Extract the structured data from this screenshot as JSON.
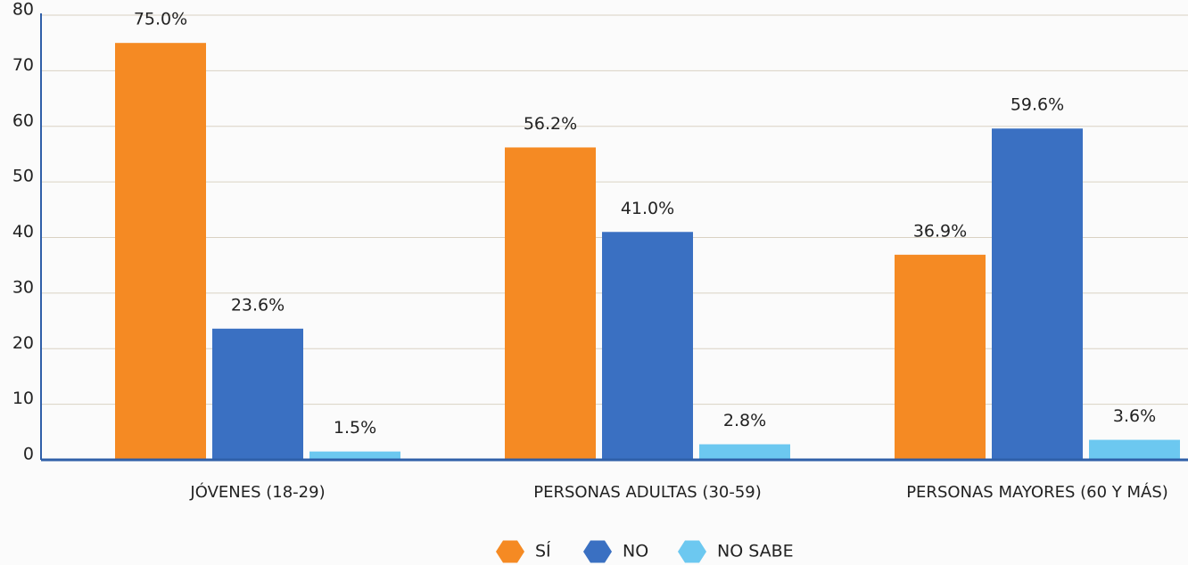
{
  "chart_data": {
    "type": "bar",
    "categories": [
      "JÓVENES (18-29)",
      "PERSONAS ADULTAS (30-59)",
      "PERSONAS MAYORES (60 Y MÁS)"
    ],
    "series": [
      {
        "name": "SÍ",
        "color": "#f58a23",
        "values": [
          75.0,
          56.2,
          36.9
        ],
        "value_labels": [
          "75.0%",
          "56.2%",
          "36.9%"
        ]
      },
      {
        "name": "NO",
        "color": "#3a70c2",
        "values": [
          23.6,
          41.0,
          59.6
        ],
        "value_labels": [
          "23.6%",
          "41.0%",
          "59.6%"
        ]
      },
      {
        "name": "NO SABE",
        "color": "#6cc8f0",
        "values": [
          1.5,
          2.8,
          3.6
        ],
        "value_labels": [
          "1.5%",
          "2.8%",
          "3.6%"
        ]
      }
    ],
    "ylim": [
      0,
      80
    ],
    "yticks": [
      0,
      10,
      20,
      30,
      40,
      50,
      60,
      70,
      80
    ],
    "grid": true,
    "legend": "bottom"
  }
}
